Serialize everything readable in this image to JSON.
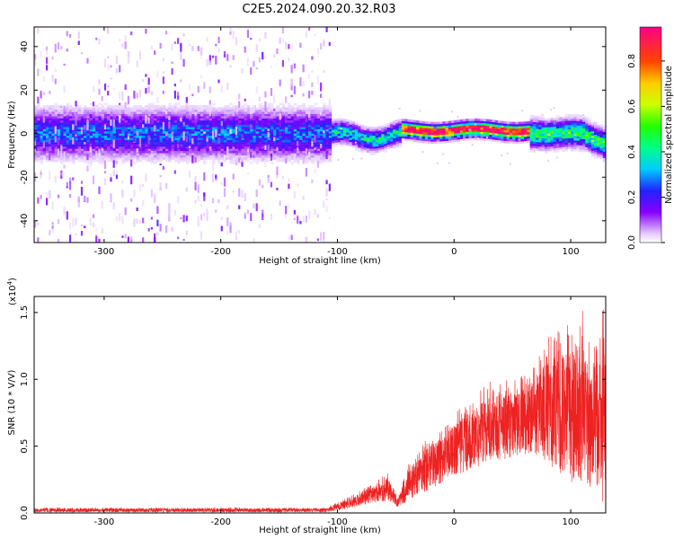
{
  "title": "C2E5.2024.090.20.32.R03",
  "colors": {
    "snr_line": "#ee2222",
    "background_hue_low": "#8800ff",
    "axis": "#000000"
  },
  "chart_data": [
    {
      "type": "heatmap",
      "name": "spectrogram",
      "xlabel": "Height of straight line (km)",
      "ylabel": "Frequency (Hz)",
      "xlim": [
        -360,
        130
      ],
      "ylim": [
        -50,
        49
      ],
      "x_ticks": [
        -300,
        -200,
        -100,
        0,
        100
      ],
      "y_ticks": [
        -40,
        -20,
        0,
        20,
        40
      ],
      "description_bands": [
        {
          "x_from": -360,
          "x_to": -105,
          "noise_spread_hz": 49,
          "core_half_width_hz": 9,
          "peak_amplitude": 0.3
        },
        {
          "x_from": -105,
          "x_to": -45,
          "core_half_width_hz": 4,
          "peak_amplitude": 0.45
        },
        {
          "x_from": -45,
          "x_to": 65,
          "core_half_width_hz": 3,
          "peak_amplitude": 0.95
        },
        {
          "x_from": 65,
          "x_to": 130,
          "core_half_width_hz": 5,
          "peak_amplitude": 0.55
        }
      ]
    },
    {
      "type": "colorbar",
      "name": "amplitude-colorbar",
      "label": "Normalized spectral amplitude",
      "range": [
        0,
        0.95
      ],
      "ticks": [
        "0.0",
        "0.2",
        "0.4",
        "0.6",
        "0.8"
      ],
      "tick_values": [
        0.0,
        0.2,
        0.4,
        0.6,
        0.8
      ]
    },
    {
      "type": "line",
      "name": "snr",
      "xlabel": "Height of straight line (km)",
      "ylabel": "SNR (10 * V/V)",
      "y_scale_label_base": "(x10",
      "y_scale_label_exp": "4",
      "y_scale_label_close": ")",
      "xlim": [
        -360,
        130
      ],
      "ylim": [
        0,
        1.62
      ],
      "x_ticks": [
        -300,
        -200,
        -100,
        0,
        100
      ],
      "y_ticks": [
        "0.0",
        "0.5",
        "1.0",
        "1.5"
      ],
      "y_tick_values": [
        0.0,
        0.5,
        1.0,
        1.5
      ],
      "envelope": [
        {
          "x": -360,
          "lo": 0.0,
          "hi": 0.04
        },
        {
          "x": -250,
          "lo": 0.0,
          "hi": 0.04
        },
        {
          "x": -150,
          "lo": 0.0,
          "hi": 0.04
        },
        {
          "x": -110,
          "lo": 0.0,
          "hi": 0.04
        },
        {
          "x": -90,
          "lo": 0.02,
          "hi": 0.12
        },
        {
          "x": -70,
          "lo": 0.05,
          "hi": 0.22
        },
        {
          "x": -57,
          "lo": 0.06,
          "hi": 0.3
        },
        {
          "x": -48,
          "lo": 0.03,
          "hi": 0.12
        },
        {
          "x": -40,
          "lo": 0.05,
          "hi": 0.35
        },
        {
          "x": -25,
          "lo": 0.1,
          "hi": 0.55
        },
        {
          "x": -10,
          "lo": 0.15,
          "hi": 0.65
        },
        {
          "x": 0,
          "lo": 0.2,
          "hi": 0.75
        },
        {
          "x": 15,
          "lo": 0.25,
          "hi": 0.85
        },
        {
          "x": 30,
          "lo": 0.3,
          "hi": 1.0
        },
        {
          "x": 40,
          "lo": 0.3,
          "hi": 1.0
        },
        {
          "x": 55,
          "lo": 0.35,
          "hi": 1.0
        },
        {
          "x": 75,
          "lo": 0.3,
          "hi": 1.2
        },
        {
          "x": 85,
          "lo": 0.15,
          "hi": 1.4
        },
        {
          "x": 100,
          "lo": 0.05,
          "hi": 1.45
        },
        {
          "x": 110,
          "lo": 0.02,
          "hi": 1.55
        },
        {
          "x": 120,
          "lo": 0.01,
          "hi": 1.3
        },
        {
          "x": 130,
          "lo": 0.01,
          "hi": 1.6
        }
      ]
    }
  ]
}
